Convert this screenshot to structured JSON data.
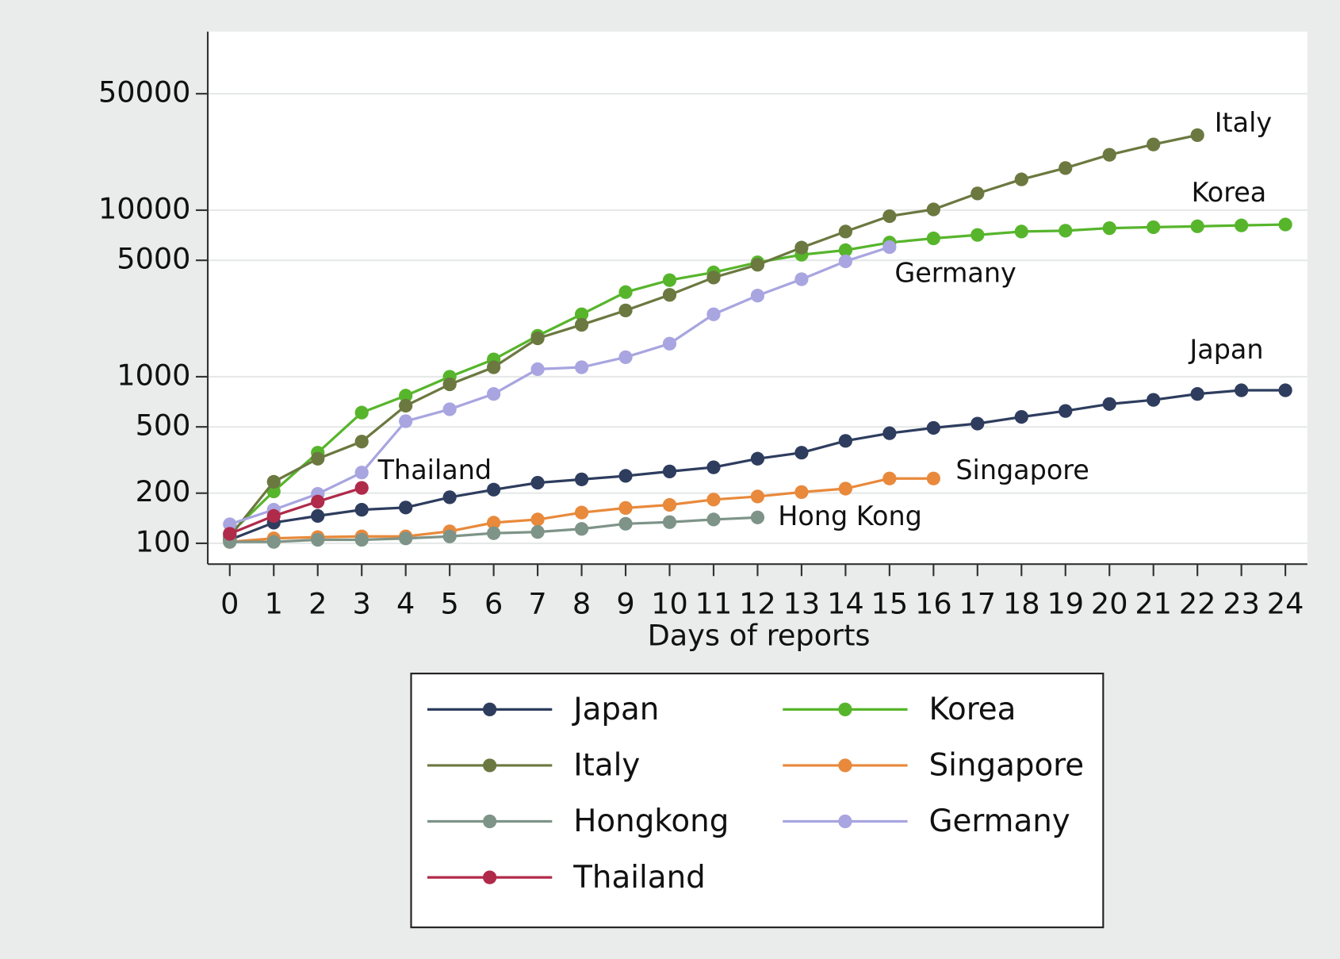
{
  "chart_data": {
    "type": "line",
    "x_label": "Days of reports",
    "x": [
      0,
      1,
      2,
      3,
      4,
      5,
      6,
      7,
      8,
      9,
      10,
      11,
      12,
      13,
      14,
      15,
      16,
      17,
      18,
      19,
      20,
      21,
      22,
      23,
      24
    ],
    "xlim": [
      -0.5,
      24.5
    ],
    "xticks": [
      0,
      1,
      2,
      3,
      4,
      5,
      6,
      7,
      8,
      9,
      10,
      11,
      12,
      13,
      14,
      15,
      16,
      17,
      18,
      19,
      20,
      21,
      22,
      23,
      24
    ],
    "ylim": [
      75,
      118000
    ],
    "yticks": [
      100,
      200,
      500,
      1000,
      5000,
      10000,
      50000
    ],
    "log_y": true,
    "grid": true,
    "series": [
      {
        "name": "Japan",
        "label": "Japan",
        "color": "#2e3d5e",
        "values": [
          105,
          133,
          146,
          159,
          164,
          189,
          210,
          231,
          242,
          254,
          270,
          286,
          322,
          350,
          412,
          458,
          493,
          523,
          574,
          623,
          686,
          726,
          788,
          829,
          829
        ]
      },
      {
        "name": "Korea",
        "label": "Korea",
        "color": "#57b52c",
        "values": [
          114,
          205,
          350,
          609,
          770,
          1000,
          1270,
          1760,
          2370,
          3220,
          3800,
          4230,
          4860,
          5400,
          5750,
          6390,
          6770,
          7100,
          7440,
          7530,
          7800,
          7900,
          8000,
          8100,
          8200
        ]
      },
      {
        "name": "Italy",
        "label": "Italy",
        "color": "#6b7840",
        "values": [
          110,
          234,
          322,
          408,
          670,
          900,
          1140,
          1700,
          2050,
          2500,
          3100,
          3940,
          4700,
          5960,
          7440,
          9200,
          10100,
          12600,
          15300,
          17900,
          21500,
          24800,
          28200,
          null,
          null
        ]
      },
      {
        "name": "Singapore",
        "label": "Singapore",
        "color": "#e8893b",
        "values": [
          102,
          107,
          109,
          110,
          110,
          118,
          133,
          139,
          153,
          163,
          170,
          183,
          191,
          203,
          213,
          245,
          245,
          null,
          null,
          null,
          null,
          null,
          null,
          null,
          null
        ]
      },
      {
        "name": "Hongkong",
        "label": "Hong Kong",
        "color": "#7e9488",
        "values": [
          102,
          102,
          105,
          105,
          107,
          110,
          115,
          117,
          122,
          131,
          134,
          139,
          143,
          null,
          null,
          null,
          null,
          null,
          null,
          null,
          null,
          null,
          null,
          null,
          null
        ]
      },
      {
        "name": "Germany",
        "label": "Germany",
        "color": "#a8a5e0",
        "values": [
          130,
          159,
          198,
          266,
          541,
          638,
          788,
          1110,
          1140,
          1310,
          1580,
          2370,
          3070,
          3850,
          4930,
          6000,
          null,
          null,
          null,
          null,
          null,
          null,
          null,
          null,
          null
        ]
      },
      {
        "name": "Thailand",
        "label": "Thailand",
        "color": "#b02a4a",
        "values": [
          114,
          146,
          178,
          215,
          null,
          null,
          null,
          null,
          null,
          null,
          null,
          null,
          null,
          null,
          null,
          null,
          null,
          null,
          null,
          null,
          null,
          null,
          null,
          null,
          null
        ]
      }
    ]
  }
}
